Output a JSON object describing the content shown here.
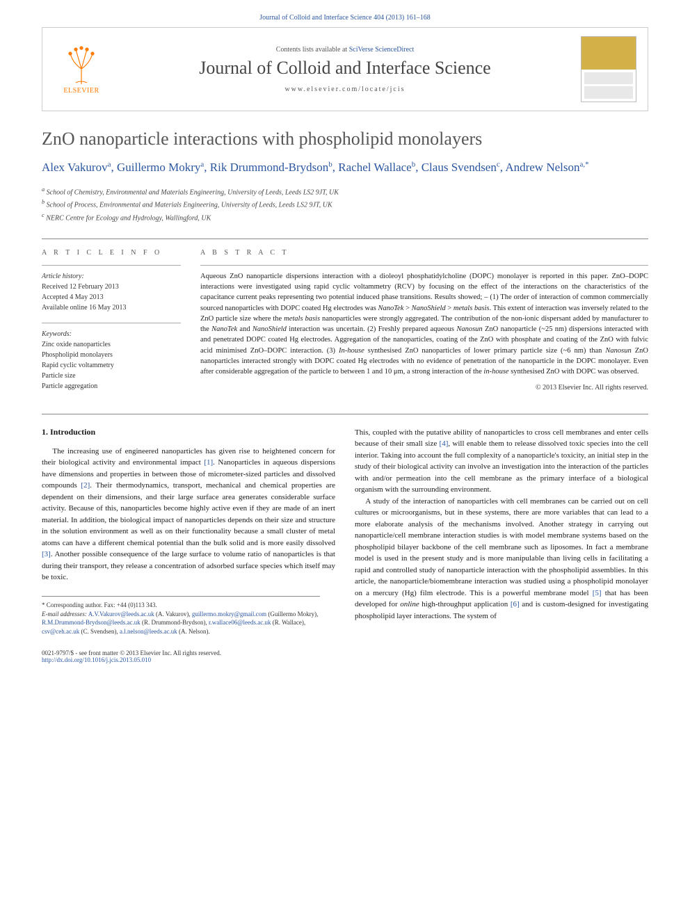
{
  "header": {
    "citation": "Journal of Colloid and Interface Science 404 (2013) 161–168"
  },
  "banner": {
    "contents_prefix": "Contents lists available at ",
    "contents_link": "SciVerse ScienceDirect",
    "journal_name": "Journal of Colloid and Interface Science",
    "homepage": "www.elsevier.com/locate/jcis",
    "publisher_label": "ELSEVIER"
  },
  "article": {
    "title": "ZnO nanoparticle interactions with phospholipid monolayers",
    "authors_html": "Alex Vakurov|a|, Guillermo Mokry|a|, Rik Drummond-Brydson|b|, Rachel Wallace|b|, Claus Svendsen|c|, Andrew Nelson|a,*|",
    "affiliations": [
      "a School of Chemistry, Environmental and Materials Engineering, University of Leeds, Leeds LS2 9JT, UK",
      "b School of Process, Environmental and Materials Engineering, University of Leeds, Leeds LS2 9JT, UK",
      "c NERC Centre for Ecology and Hydrology, Wallingford, UK"
    ]
  },
  "info": {
    "heading": "A R T I C L E   I N F O",
    "history_label": "Article history:",
    "history": [
      "Received 12 February 2013",
      "Accepted 4 May 2013",
      "Available online 16 May 2013"
    ],
    "keywords_label": "Keywords:",
    "keywords": [
      "Zinc oxide nanoparticles",
      "Phospholipid monolayers",
      "Rapid cyclic voltammetry",
      "Particle size",
      "Particle aggregation"
    ]
  },
  "abstract": {
    "heading": "A B S T R A C T",
    "text": "Aqueous ZnO nanoparticle dispersions interaction with a dioleoyl phosphatidylcholine (DOPC) monolayer is reported in this paper. ZnO–DOPC interactions were investigated using rapid cyclic voltammetry (RCV) by focusing on the effect of the interactions on the characteristics of the capacitance current peaks representing two potential induced phase transitions. Results showed; – (1) The order of interaction of common commercially sourced nanoparticles with DOPC coated Hg electrodes was NanoTek > NanoShield > metals basis. This extent of interaction was inversely related to the ZnO particle size where the metals basis nanoparticles were strongly aggregated. The contribution of the non-ionic dispersant added by manufacturer to the NanoTek and NanoShield interaction was uncertain. (2) Freshly prepared aqueous Nanosun ZnO nanoparticle (~25 nm) dispersions interacted with and penetrated DOPC coated Hg electrodes. Aggregation of the nanoparticles, coating of the ZnO with phosphate and coating of the ZnO with fulvic acid minimised ZnO–DOPC interaction. (3) In-house synthesised ZnO nanoparticles of lower primary particle size (~6 nm) than Nanosun ZnO nanoparticles interacted strongly with DOPC coated Hg electrodes with no evidence of penetration of the nanoparticle in the DOPC monolayer. Even after considerable aggregation of the particle to between 1 and 10 μm, a strong interaction of the in-house synthesised ZnO with DOPC was observed.",
    "copyright": "© 2013 Elsevier Inc. All rights reserved."
  },
  "body": {
    "section_heading": "1. Introduction",
    "left_col": "The increasing use of engineered nanoparticles has given rise to heightened concern for their biological activity and environmental impact [1]. Nanoparticles in aqueous dispersions have dimensions and properties in between those of micrometer-sized particles and dissolved compounds [2]. Their thermodynamics, transport, mechanical and chemical properties are dependent on their dimensions, and their large surface area generates considerable surface activity. Because of this, nanoparticles become highly active even if they are made of an inert material. In addition, the biological impact of nanoparticles depends on their size and structure in the solution environment as well as on their functionality because a small cluster of metal atoms can have a different chemical potential than the bulk solid and is more easily dissolved [3]. Another possible consequence of the large surface to volume ratio of nanoparticles is that during their transport, they release a concentration of adsorbed surface species which itself may be toxic.",
    "right_col_p1": "This, coupled with the putative ability of nanoparticles to cross cell membranes and enter cells because of their small size [4], will enable them to release dissolved toxic species into the cell interior. Taking into account the full complexity of a nanoparticle's toxicity, an initial step in the study of their biological activity can involve an investigation into the interaction of the particles with and/or permeation into the cell membrane as the primary interface of a biological organism with the surrounding environment.",
    "right_col_p2": "A study of the interaction of nanoparticles with cell membranes can be carried out on cell cultures or microorganisms, but in these systems, there are more variables that can lead to a more elaborate analysis of the mechanisms involved. Another strategy in carrying out nanoparticle/cell membrane interaction studies is with model membrane systems based on the phospholipid bilayer backbone of the cell membrane such as liposomes. In fact a membrane model is used in the present study and is more manipulable than living cells in facilitating a rapid and controlled study of nanoparticle interaction with the phospholipid assemblies. In this article, the nanoparticle/biomembrane interaction was studied using a phospholipid monolayer on a mercury (Hg) film electrode. This is a powerful membrane model [5] that has been developed for online high-throughput application [6] and is custom-designed for investigating phospholipid layer interactions. The system of"
  },
  "footnotes": {
    "corr": "* Corresponding author. Fax: +44 (0)113 343.",
    "email_label": "E-mail addresses:",
    "emails": "A.V.Vakurov@leeds.ac.uk (A. Vakurov), guillermo.mokry@gmail.com (Guillermo Mokry), R.M.Drummond-Brydson@leeds.ac.uk (R. Drummond-Brydson), r.wallace06@leeds.ac.uk (R. Wallace), csv@ceh.ac.uk (C. Svendsen), a.l.nelson@leeds.ac.uk (A. Nelson)."
  },
  "footer": {
    "left_line1": "0021-9797/$ - see front matter © 2013 Elsevier Inc. All rights reserved.",
    "left_line2": "http://dx.doi.org/10.1016/j.jcis.2013.05.010"
  },
  "colors": {
    "link": "#2a56a0",
    "elsevier_orange": "#ff7a00",
    "heading_gray": "#565656",
    "cover_gold": "#d4b048"
  }
}
